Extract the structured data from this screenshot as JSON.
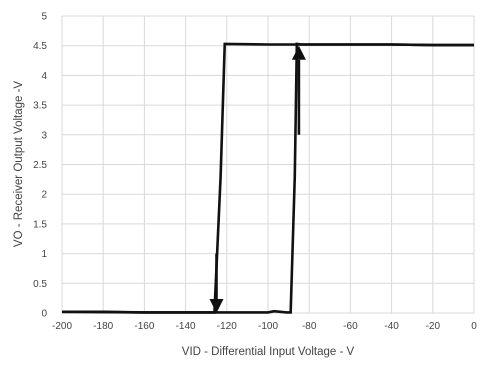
{
  "chart_data": {
    "type": "line",
    "title": "",
    "xlabel": "VID - Differential Input Voltage - V",
    "ylabel": "VO - Receiver Output Voltage -V",
    "xlim": [
      -200,
      0
    ],
    "ylim": [
      0,
      5
    ],
    "x_ticks": [
      -200,
      -180,
      -160,
      -140,
      -120,
      -100,
      -80,
      -60,
      -40,
      -20,
      0
    ],
    "y_ticks": [
      0,
      0.5,
      1,
      1.5,
      2,
      2.5,
      3,
      3.5,
      4,
      4.5,
      5
    ],
    "y_tick_labels": [
      "0",
      "0.5",
      "1",
      "1.5",
      "2",
      "2.5",
      "3",
      "3.5",
      "4",
      "4.5",
      "5"
    ],
    "grid": true,
    "legend": "none",
    "series": [
      {
        "x": [
          -200,
          -180,
          -160,
          -140,
          -126,
          -123,
          -121,
          -100,
          -80,
          -60,
          -40,
          -20,
          0
        ],
        "y": [
          0.02,
          0.02,
          0.01,
          0.01,
          0.01,
          2.3,
          4.53,
          4.52,
          4.52,
          4.52,
          4.52,
          4.51,
          4.51
        ],
        "direction": "falling"
      },
      {
        "x": [
          -200,
          -160,
          -140,
          -120,
          -100,
          -97,
          -94,
          -91,
          -89,
          -87,
          -86,
          -84,
          -80,
          -60,
          -40,
          -20,
          0
        ],
        "y": [
          0.02,
          0.01,
          0.01,
          0.01,
          0.01,
          0.03,
          0.02,
          0.01,
          0.01,
          2.3,
          4.53,
          4.52,
          4.52,
          4.52,
          4.52,
          4.51,
          4.51
        ],
        "direction": "rising"
      }
    ],
    "arrows": [
      {
        "name": "falling",
        "x": -125,
        "y_from": 1.0,
        "y_to": 0.0
      },
      {
        "name": "rising",
        "x": -85,
        "y_from": 3.0,
        "y_to": 4.5
      }
    ]
  }
}
